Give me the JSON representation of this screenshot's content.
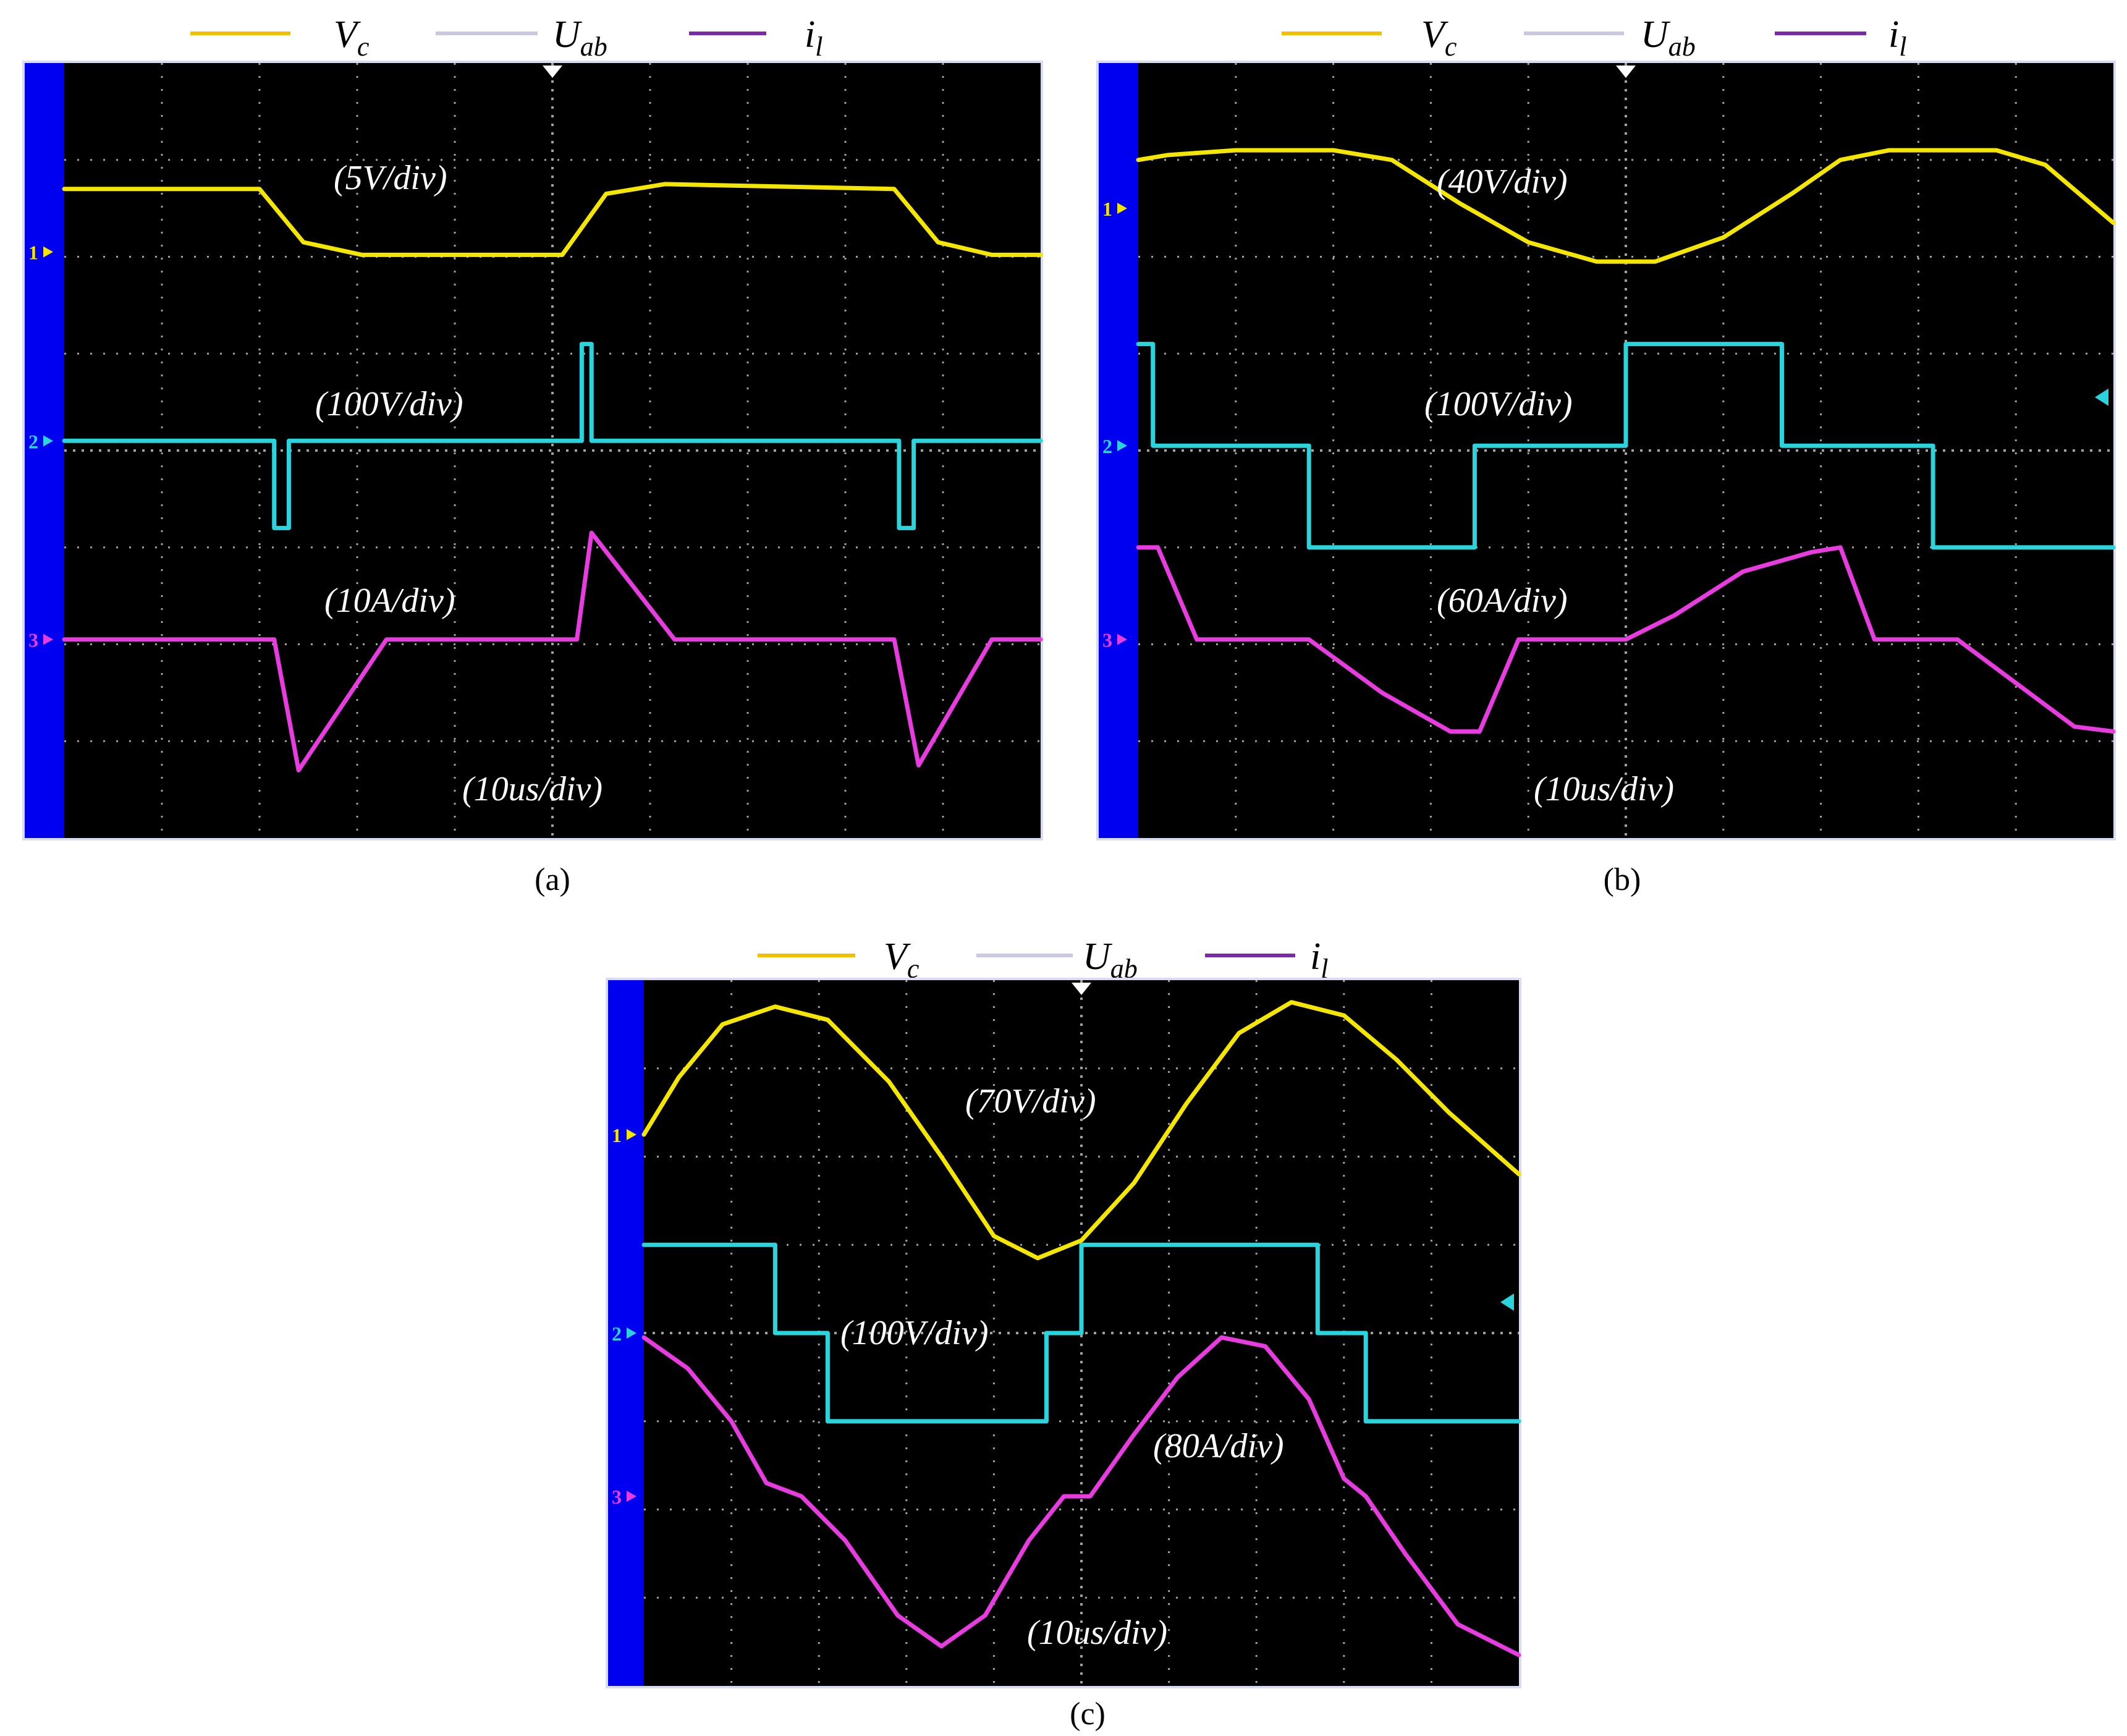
{
  "colors": {
    "vc": "#f5e600",
    "uab": "#2ad4dc",
    "il": "#e83ce0",
    "legend_vc": "#f2c000",
    "legend_uab": "#c8c8e0",
    "legend_il": "#7a2aa8",
    "screen": "#000000",
    "side_bar": "#0000f0",
    "grid": "#a0a0a0"
  },
  "legend": {
    "vc": {
      "main": "V",
      "sub": "c"
    },
    "uab": {
      "main": "U",
      "sub": "ab"
    },
    "il": {
      "main": "i",
      "sub": "l"
    }
  },
  "channel_markers": [
    "1",
    "2",
    "3"
  ],
  "chart_data": [
    {
      "type": "line",
      "caption": "(a)",
      "x": {
        "divisions": 10,
        "scale": "(10us/div)"
      },
      "y": {
        "divisions": 8
      },
      "channel_levels": {
        "ch1": 1.95,
        "ch2": 3.9,
        "ch3": 5.95
      },
      "scales": {
        "vc": "(5V/div)",
        "uab": "(100V/div)",
        "il": "(10A/div)"
      },
      "series": [
        {
          "key": "vc",
          "points": [
            [
              0,
              1.3
            ],
            [
              2.0,
              1.3
            ],
            [
              2.45,
              1.85
            ],
            [
              3.05,
              1.98
            ],
            [
              5.1,
              1.98
            ],
            [
              5.55,
              1.35
            ],
            [
              6.15,
              1.25
            ],
            [
              8.5,
              1.3
            ],
            [
              8.95,
              1.85
            ],
            [
              9.5,
              1.98
            ],
            [
              10,
              1.98
            ]
          ]
        },
        {
          "key": "uab",
          "points": [
            [
              0,
              3.9
            ],
            [
              2.15,
              3.9
            ],
            [
              2.15,
              4.8
            ],
            [
              2.3,
              4.8
            ],
            [
              2.3,
              3.9
            ],
            [
              5.3,
              3.9
            ],
            [
              5.3,
              2.9
            ],
            [
              5.4,
              2.9
            ],
            [
              5.4,
              3.9
            ],
            [
              8.55,
              3.9
            ],
            [
              8.55,
              4.8
            ],
            [
              8.7,
              4.8
            ],
            [
              8.7,
              3.9
            ],
            [
              10,
              3.9
            ]
          ]
        },
        {
          "key": "il",
          "points": [
            [
              0,
              5.95
            ],
            [
              2.15,
              5.95
            ],
            [
              2.4,
              7.3
            ],
            [
              3.3,
              5.95
            ],
            [
              5.25,
              5.95
            ],
            [
              5.4,
              4.85
            ],
            [
              6.25,
              5.95
            ],
            [
              8.5,
              5.95
            ],
            [
              8.75,
              7.25
            ],
            [
              9.5,
              5.95
            ],
            [
              10,
              5.95
            ]
          ]
        }
      ]
    },
    {
      "type": "line",
      "caption": "(b)",
      "x": {
        "divisions": 10,
        "scale": "(10us/div)"
      },
      "y": {
        "divisions": 8
      },
      "channel_levels": {
        "ch1": 1.5,
        "ch2": 3.95,
        "ch3": 5.95
      },
      "scales": {
        "vc": "(40V/div)",
        "uab": "(100V/div)",
        "il": "(60A/div)"
      },
      "series": [
        {
          "key": "vc",
          "points": [
            [
              0,
              1.0
            ],
            [
              0.3,
              0.95
            ],
            [
              1.0,
              0.9
            ],
            [
              2.0,
              0.9
            ],
            [
              2.6,
              1.0
            ],
            [
              3.3,
              1.45
            ],
            [
              4.0,
              1.85
            ],
            [
              4.7,
              2.05
            ],
            [
              5.3,
              2.05
            ],
            [
              6.0,
              1.8
            ],
            [
              6.7,
              1.35
            ],
            [
              7.2,
              1.0
            ],
            [
              7.7,
              0.9
            ],
            [
              8.8,
              0.9
            ],
            [
              9.3,
              1.05
            ],
            [
              10,
              1.65
            ]
          ]
        },
        {
          "key": "uab",
          "points": [
            [
              0,
              2.9
            ],
            [
              0.15,
              2.9
            ],
            [
              0.15,
              3.95
            ],
            [
              1.75,
              3.95
            ],
            [
              1.75,
              5.0
            ],
            [
              3.45,
              5.0
            ],
            [
              3.45,
              3.95
            ],
            [
              5.0,
              3.95
            ],
            [
              5.0,
              2.9
            ],
            [
              6.6,
              2.9
            ],
            [
              6.6,
              3.95
            ],
            [
              8.15,
              3.95
            ],
            [
              8.15,
              5.0
            ],
            [
              10,
              5.0
            ]
          ]
        },
        {
          "key": "il",
          "points": [
            [
              0,
              5.0
            ],
            [
              0.2,
              5.0
            ],
            [
              0.6,
              5.95
            ],
            [
              1.75,
              5.95
            ],
            [
              2.5,
              6.5
            ],
            [
              3.2,
              6.9
            ],
            [
              3.5,
              6.9
            ],
            [
              3.9,
              5.95
            ],
            [
              5.0,
              5.95
            ],
            [
              5.5,
              5.7
            ],
            [
              6.2,
              5.25
            ],
            [
              6.9,
              5.05
            ],
            [
              7.2,
              5.0
            ],
            [
              7.55,
              5.95
            ],
            [
              8.4,
              5.95
            ],
            [
              9.0,
              6.4
            ],
            [
              9.6,
              6.85
            ],
            [
              10,
              6.9
            ]
          ]
        }
      ]
    },
    {
      "type": "line",
      "caption": "(c)",
      "x": {
        "divisions": 10,
        "scale": "(10us/div)"
      },
      "y": {
        "divisions": 8
      },
      "channel_levels": {
        "ch1": 1.75,
        "ch2": 4.0,
        "ch3": 5.85
      },
      "scales": {
        "vc": "(70V/div)",
        "uab": "(100V/div)",
        "il": "(80A/div)"
      },
      "series": [
        {
          "key": "vc",
          "points": [
            [
              0,
              1.75
            ],
            [
              0.4,
              1.1
            ],
            [
              0.9,
              0.5
            ],
            [
              1.5,
              0.3
            ],
            [
              2.1,
              0.45
            ],
            [
              2.8,
              1.15
            ],
            [
              3.4,
              2.0
            ],
            [
              4.0,
              2.9
            ],
            [
              4.5,
              3.15
            ],
            [
              5.0,
              2.95
            ],
            [
              5.6,
              2.3
            ],
            [
              6.2,
              1.4
            ],
            [
              6.8,
              0.6
            ],
            [
              7.4,
              0.25
            ],
            [
              8.0,
              0.4
            ],
            [
              8.6,
              0.9
            ],
            [
              9.2,
              1.5
            ],
            [
              10,
              2.2
            ]
          ]
        },
        {
          "key": "uab",
          "points": [
            [
              0,
              3.0
            ],
            [
              1.5,
              3.0
            ],
            [
              1.5,
              4.0
            ],
            [
              2.1,
              4.0
            ],
            [
              2.1,
              5.0
            ],
            [
              4.6,
              5.0
            ],
            [
              4.6,
              4.0
            ],
            [
              5.0,
              4.0
            ],
            [
              5.0,
              3.0
            ],
            [
              7.7,
              3.0
            ],
            [
              7.7,
              4.0
            ],
            [
              8.25,
              4.0
            ],
            [
              8.25,
              5.0
            ],
            [
              10,
              5.0
            ]
          ]
        },
        {
          "key": "il",
          "points": [
            [
              0,
              4.05
            ],
            [
              0.5,
              4.4
            ],
            [
              1.0,
              5.0
            ],
            [
              1.4,
              5.7
            ],
            [
              1.8,
              5.85
            ],
            [
              2.3,
              6.35
            ],
            [
              2.9,
              7.2
            ],
            [
              3.4,
              7.55
            ],
            [
              3.9,
              7.2
            ],
            [
              4.4,
              6.35
            ],
            [
              4.8,
              5.85
            ],
            [
              5.1,
              5.85
            ],
            [
              5.6,
              5.15
            ],
            [
              6.1,
              4.5
            ],
            [
              6.6,
              4.05
            ],
            [
              7.1,
              4.15
            ],
            [
              7.6,
              4.75
            ],
            [
              8.0,
              5.65
            ],
            [
              8.25,
              5.85
            ],
            [
              8.7,
              6.5
            ],
            [
              9.3,
              7.3
            ],
            [
              10,
              7.65
            ]
          ]
        }
      ]
    }
  ]
}
